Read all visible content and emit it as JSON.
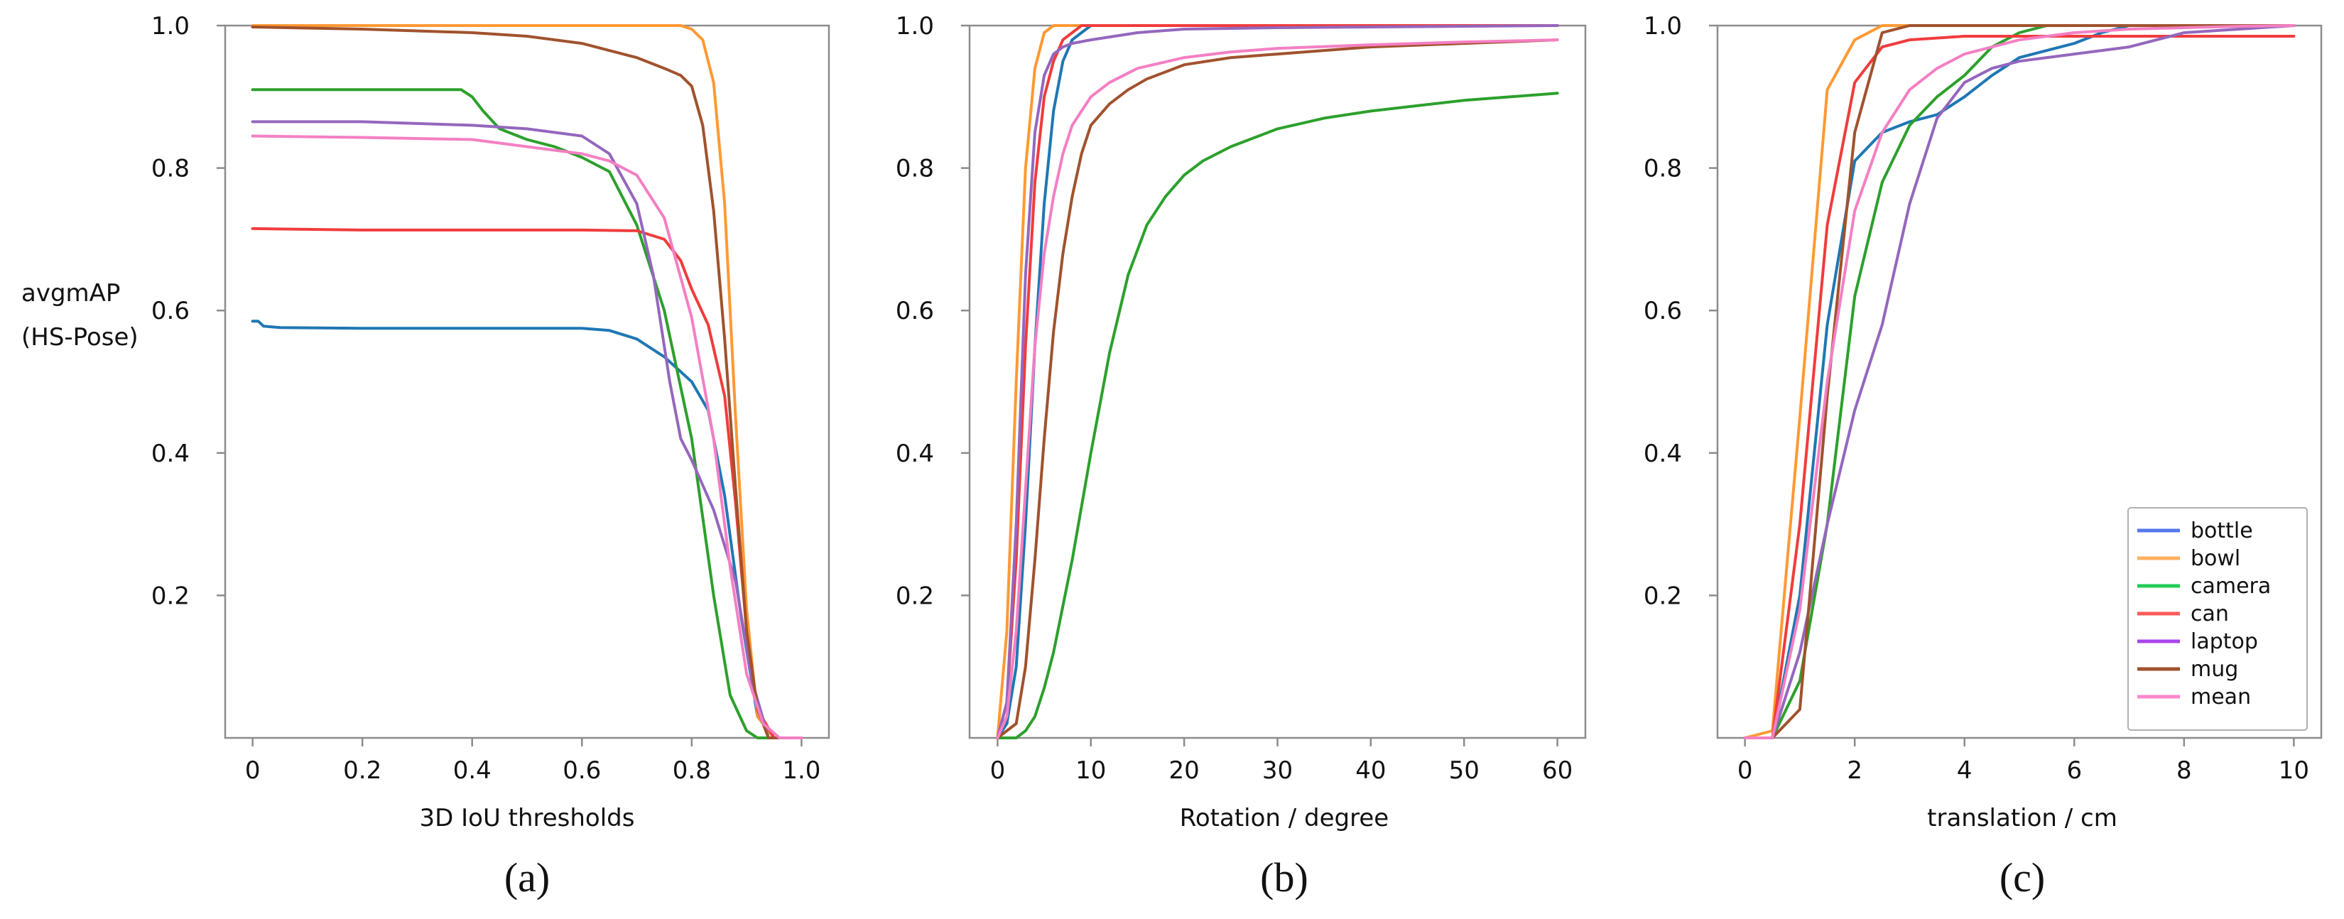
{
  "series_colors": {
    "bottle": "#1f77b4",
    "bowl": "#ff9933",
    "camera": "#2ca02c",
    "can": "#f03c3c",
    "laptop": "#9467bd",
    "mug": "#a0522d",
    "mean": "#f47fc3"
  },
  "legend_colors": {
    "bottle": "#5577ee",
    "bowl": "#ffb060",
    "camera": "#22cc55",
    "can": "#ff5a5a",
    "laptop": "#aa44ee",
    "mug": "#a0522d",
    "mean": "#ff88cc"
  },
  "chart_data": [
    {
      "type": "line",
      "caption": "(a)",
      "title": "",
      "ylabel": [
        "avgmAP",
        "(HS-Pose)"
      ],
      "xlabel": "3D IoU thresholds",
      "xlim": [
        -0.05,
        1.05
      ],
      "ylim": [
        0,
        1.0
      ],
      "xticks": [
        "0",
        "0.2",
        "0.4",
        "0.6",
        "0.8",
        "1.0"
      ],
      "xtick_values": [
        0,
        0.2,
        0.4,
        0.6,
        0.8,
        1.0
      ],
      "yticks": [
        "0.2",
        "0.4",
        "0.6",
        "0.8",
        "1.0"
      ],
      "ytick_values": [
        0.2,
        0.4,
        0.6,
        0.8,
        1.0
      ],
      "legend": null,
      "series": [
        {
          "name": "bottle",
          "x": [
            0,
            0.01,
            0.02,
            0.05,
            0.2,
            0.4,
            0.6,
            0.65,
            0.7,
            0.75,
            0.8,
            0.83,
            0.86,
            0.89,
            0.92,
            0.95,
            1.0
          ],
          "y": [
            0.585,
            0.585,
            0.578,
            0.576,
            0.575,
            0.575,
            0.575,
            0.572,
            0.56,
            0.535,
            0.5,
            0.46,
            0.34,
            0.17,
            0.03,
            0.0,
            0.0
          ]
        },
        {
          "name": "bowl",
          "x": [
            0,
            0.2,
            0.4,
            0.6,
            0.78,
            0.8,
            0.82,
            0.84,
            0.86,
            0.88,
            0.9,
            0.92,
            0.95,
            1.0
          ],
          "y": [
            1.0,
            1.0,
            1.0,
            1.0,
            1.0,
            0.995,
            0.98,
            0.92,
            0.75,
            0.45,
            0.18,
            0.03,
            0.0,
            0.0
          ]
        },
        {
          "name": "camera",
          "x": [
            0,
            0.2,
            0.38,
            0.4,
            0.42,
            0.45,
            0.5,
            0.55,
            0.6,
            0.65,
            0.7,
            0.75,
            0.8,
            0.84,
            0.87,
            0.9,
            0.92,
            0.95,
            1.0
          ],
          "y": [
            0.91,
            0.91,
            0.91,
            0.9,
            0.88,
            0.855,
            0.84,
            0.83,
            0.815,
            0.795,
            0.72,
            0.6,
            0.42,
            0.2,
            0.06,
            0.01,
            0.0,
            0.0,
            0.0
          ]
        },
        {
          "name": "can",
          "x": [
            0,
            0.2,
            0.4,
            0.6,
            0.7,
            0.75,
            0.78,
            0.8,
            0.83,
            0.86,
            0.88,
            0.9,
            0.92,
            0.95,
            1.0
          ],
          "y": [
            0.715,
            0.713,
            0.713,
            0.713,
            0.712,
            0.7,
            0.67,
            0.63,
            0.58,
            0.48,
            0.33,
            0.15,
            0.04,
            0.0,
            0.0
          ]
        },
        {
          "name": "laptop",
          "x": [
            0,
            0.2,
            0.4,
            0.5,
            0.6,
            0.65,
            0.7,
            0.73,
            0.76,
            0.78,
            0.8,
            0.84,
            0.88,
            0.91,
            0.94,
            1.0
          ],
          "y": [
            0.865,
            0.865,
            0.86,
            0.855,
            0.845,
            0.82,
            0.75,
            0.65,
            0.5,
            0.42,
            0.39,
            0.32,
            0.22,
            0.08,
            0.0,
            0.0
          ]
        },
        {
          "name": "mug",
          "x": [
            0,
            0.2,
            0.4,
            0.5,
            0.6,
            0.7,
            0.75,
            0.78,
            0.8,
            0.82,
            0.84,
            0.86,
            0.88,
            0.9,
            0.92,
            0.94,
            1.0
          ],
          "y": [
            0.998,
            0.995,
            0.99,
            0.985,
            0.975,
            0.955,
            0.94,
            0.93,
            0.915,
            0.86,
            0.74,
            0.56,
            0.35,
            0.15,
            0.04,
            0.0,
            0.0
          ]
        },
        {
          "name": "mean",
          "x": [
            0,
            0.2,
            0.4,
            0.5,
            0.6,
            0.65,
            0.7,
            0.75,
            0.8,
            0.84,
            0.87,
            0.9,
            0.93,
            0.96,
            1.0
          ],
          "y": [
            0.845,
            0.843,
            0.84,
            0.83,
            0.82,
            0.81,
            0.79,
            0.73,
            0.59,
            0.42,
            0.24,
            0.09,
            0.02,
            0.0,
            0.0
          ]
        }
      ]
    },
    {
      "type": "line",
      "caption": "(b)",
      "title": "",
      "ylabel": null,
      "xlabel": "Rotation / degree",
      "xlim": [
        -3,
        63
      ],
      "ylim": [
        0,
        1.0
      ],
      "xticks": [
        "0",
        "10",
        "20",
        "30",
        "40",
        "50",
        "60"
      ],
      "xtick_values": [
        0,
        10,
        20,
        30,
        40,
        50,
        60
      ],
      "yticks": [
        "0.2",
        "0.4",
        "0.6",
        "0.8",
        "1.0"
      ],
      "ytick_values": [
        0.2,
        0.4,
        0.6,
        0.8,
        1.0
      ],
      "legend": null,
      "series": [
        {
          "name": "bottle",
          "x": [
            0,
            1,
            2,
            3,
            4,
            5,
            6,
            7,
            8,
            9,
            10,
            12,
            15,
            20,
            30,
            40,
            60
          ],
          "y": [
            0.0,
            0.02,
            0.1,
            0.3,
            0.55,
            0.75,
            0.88,
            0.95,
            0.98,
            0.99,
            1.0,
            1.0,
            1.0,
            1.0,
            1.0,
            1.0,
            1.0
          ]
        },
        {
          "name": "bowl",
          "x": [
            0,
            1,
            2,
            3,
            4,
            5,
            6,
            7,
            8,
            10,
            20,
            30,
            40,
            60
          ],
          "y": [
            0.0,
            0.15,
            0.5,
            0.8,
            0.94,
            0.99,
            1.0,
            1.0,
            1.0,
            1.0,
            1.0,
            1.0,
            1.0,
            1.0
          ]
        },
        {
          "name": "camera",
          "x": [
            0,
            2,
            3,
            4,
            5,
            6,
            8,
            10,
            12,
            14,
            16,
            18,
            20,
            22,
            25,
            30,
            35,
            40,
            50,
            60
          ],
          "y": [
            0.0,
            0.0,
            0.01,
            0.03,
            0.07,
            0.12,
            0.25,
            0.4,
            0.54,
            0.65,
            0.72,
            0.76,
            0.79,
            0.81,
            0.83,
            0.855,
            0.87,
            0.88,
            0.895,
            0.905
          ]
        },
        {
          "name": "can",
          "x": [
            0,
            1,
            2,
            3,
            4,
            5,
            6,
            7,
            8,
            9,
            10,
            12,
            20,
            30,
            40,
            60
          ],
          "y": [
            0.0,
            0.05,
            0.25,
            0.55,
            0.78,
            0.9,
            0.95,
            0.98,
            0.99,
            1.0,
            1.0,
            1.0,
            1.0,
            1.0,
            1.0,
            1.0
          ]
        },
        {
          "name": "laptop",
          "x": [
            0,
            1,
            2,
            3,
            4,
            5,
            6,
            7,
            8,
            10,
            15,
            20,
            30,
            40,
            50,
            60
          ],
          "y": [
            0.0,
            0.05,
            0.3,
            0.65,
            0.85,
            0.93,
            0.96,
            0.97,
            0.975,
            0.98,
            0.99,
            0.995,
            0.997,
            0.998,
            0.999,
            1.0
          ]
        },
        {
          "name": "mug",
          "x": [
            0,
            2,
            3,
            4,
            5,
            6,
            7,
            8,
            9,
            10,
            12,
            14,
            16,
            18,
            20,
            25,
            30,
            40,
            50,
            60
          ],
          "y": [
            0.0,
            0.02,
            0.1,
            0.25,
            0.42,
            0.57,
            0.68,
            0.76,
            0.82,
            0.86,
            0.89,
            0.91,
            0.925,
            0.935,
            0.945,
            0.955,
            0.96,
            0.97,
            0.975,
            0.98
          ]
        },
        {
          "name": "mean",
          "x": [
            0,
            1,
            2,
            3,
            4,
            5,
            6,
            7,
            8,
            9,
            10,
            12,
            15,
            20,
            25,
            30,
            40,
            50,
            60
          ],
          "y": [
            0.0,
            0.03,
            0.15,
            0.35,
            0.55,
            0.68,
            0.76,
            0.82,
            0.86,
            0.88,
            0.9,
            0.92,
            0.94,
            0.955,
            0.963,
            0.968,
            0.973,
            0.977,
            0.98
          ]
        }
      ]
    },
    {
      "type": "line",
      "caption": "(c)",
      "title": "",
      "ylabel": null,
      "xlabel": "translation / cm",
      "xlim": [
        -0.5,
        10.5
      ],
      "ylim": [
        0,
        1.0
      ],
      "xticks": [
        "0",
        "2",
        "4",
        "6",
        "8",
        "10"
      ],
      "xtick_values": [
        0,
        2,
        4,
        6,
        8,
        10
      ],
      "yticks": [
        "0.2",
        "0.4",
        "0.6",
        "0.8",
        "1.0"
      ],
      "ytick_values": [
        0.2,
        0.4,
        0.6,
        0.8,
        1.0
      ],
      "legend": {
        "position": "lower-right",
        "entries": [
          "bottle",
          "bowl",
          "camera",
          "can",
          "laptop",
          "mug",
          "mean"
        ]
      },
      "series": [
        {
          "name": "bottle",
          "x": [
            0,
            0.5,
            1.0,
            1.5,
            2.0,
            2.5,
            3.0,
            3.5,
            4.0,
            4.5,
            5.0,
            5.5,
            6.0,
            6.5,
            7.0,
            8.0,
            9.0,
            10.0
          ],
          "y": [
            0.0,
            0.0,
            0.2,
            0.58,
            0.81,
            0.85,
            0.865,
            0.875,
            0.9,
            0.93,
            0.955,
            0.965,
            0.975,
            0.99,
            1.0,
            1.0,
            1.0,
            1.0
          ]
        },
        {
          "name": "bowl",
          "x": [
            0,
            0.5,
            1.0,
            1.5,
            2.0,
            2.5,
            3.0,
            4.0,
            6.0,
            8.0,
            10.0
          ],
          "y": [
            0.0,
            0.01,
            0.45,
            0.91,
            0.98,
            1.0,
            1.0,
            1.0,
            1.0,
            1.0,
            1.0
          ]
        },
        {
          "name": "camera",
          "x": [
            0,
            0.5,
            1.0,
            1.5,
            2.0,
            2.5,
            3.0,
            3.5,
            4.0,
            4.5,
            5.0,
            5.5,
            6.0,
            7.0,
            8.0,
            10.0
          ],
          "y": [
            0.0,
            0.0,
            0.08,
            0.3,
            0.62,
            0.78,
            0.86,
            0.9,
            0.93,
            0.97,
            0.99,
            1.0,
            1.0,
            1.0,
            1.0,
            1.0
          ]
        },
        {
          "name": "can",
          "x": [
            0,
            0.5,
            1.0,
            1.5,
            2.0,
            2.5,
            3.0,
            4.0,
            6.0,
            8.0,
            10.0
          ],
          "y": [
            0.0,
            0.0,
            0.3,
            0.72,
            0.92,
            0.97,
            0.98,
            0.985,
            0.985,
            0.985,
            0.985
          ]
        },
        {
          "name": "laptop",
          "x": [
            0,
            0.5,
            1.0,
            1.5,
            2.0,
            2.5,
            3.0,
            3.5,
            4.0,
            4.5,
            5.0,
            5.5,
            6.0,
            6.5,
            7.0,
            7.5,
            8.0,
            9.0,
            10.0
          ],
          "y": [
            0.0,
            0.0,
            0.12,
            0.3,
            0.46,
            0.58,
            0.75,
            0.87,
            0.92,
            0.94,
            0.95,
            0.955,
            0.96,
            0.965,
            0.97,
            0.98,
            0.99,
            0.995,
            1.0
          ]
        },
        {
          "name": "mug",
          "x": [
            0,
            0.5,
            1.0,
            1.5,
            2.0,
            2.5,
            3.0,
            4.0,
            6.0,
            8.0,
            10.0
          ],
          "y": [
            0.0,
            0.0,
            0.04,
            0.48,
            0.85,
            0.99,
            1.0,
            1.0,
            1.0,
            1.0,
            1.0
          ]
        },
        {
          "name": "mean",
          "x": [
            0,
            0.5,
            1.0,
            1.5,
            2.0,
            2.5,
            3.0,
            3.5,
            4.0,
            5.0,
            6.0,
            7.0,
            8.0,
            9.0,
            10.0
          ],
          "y": [
            0.0,
            0.0,
            0.18,
            0.5,
            0.74,
            0.85,
            0.91,
            0.94,
            0.96,
            0.98,
            0.99,
            0.995,
            0.997,
            0.999,
            1.0
          ]
        }
      ]
    }
  ]
}
